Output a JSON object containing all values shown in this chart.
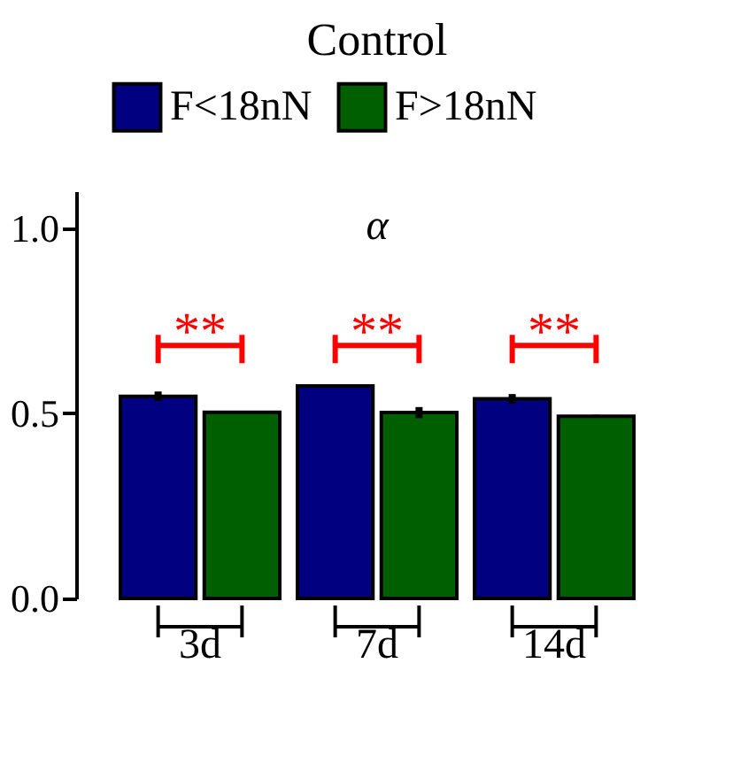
{
  "chart_data": {
    "type": "bar",
    "title": "Control",
    "categories": [
      "3d",
      "7d",
      "14d"
    ],
    "series": [
      {
        "name": "F<18nN",
        "color": "#000080",
        "values": [
          0.546,
          0.574,
          0.539
        ],
        "errors": [
          0.013,
          0.004,
          0.013
        ]
      },
      {
        "name": "F>18nN",
        "color": "#005f00",
        "values": [
          0.503,
          0.502,
          0.492
        ],
        "errors": [
          0.003,
          0.015,
          0.004
        ]
      }
    ],
    "ylim": [
      0,
      1.1
    ],
    "yticks": [
      {
        "value": 0,
        "label": "0.0"
      },
      {
        "value": 0.5,
        "label": "0.5"
      },
      {
        "value": 1.0,
        "label": "1.0"
      }
    ],
    "legend": "top",
    "grid": false,
    "annotations": [
      "α",
      "**",
      "**",
      "**"
    ]
  }
}
